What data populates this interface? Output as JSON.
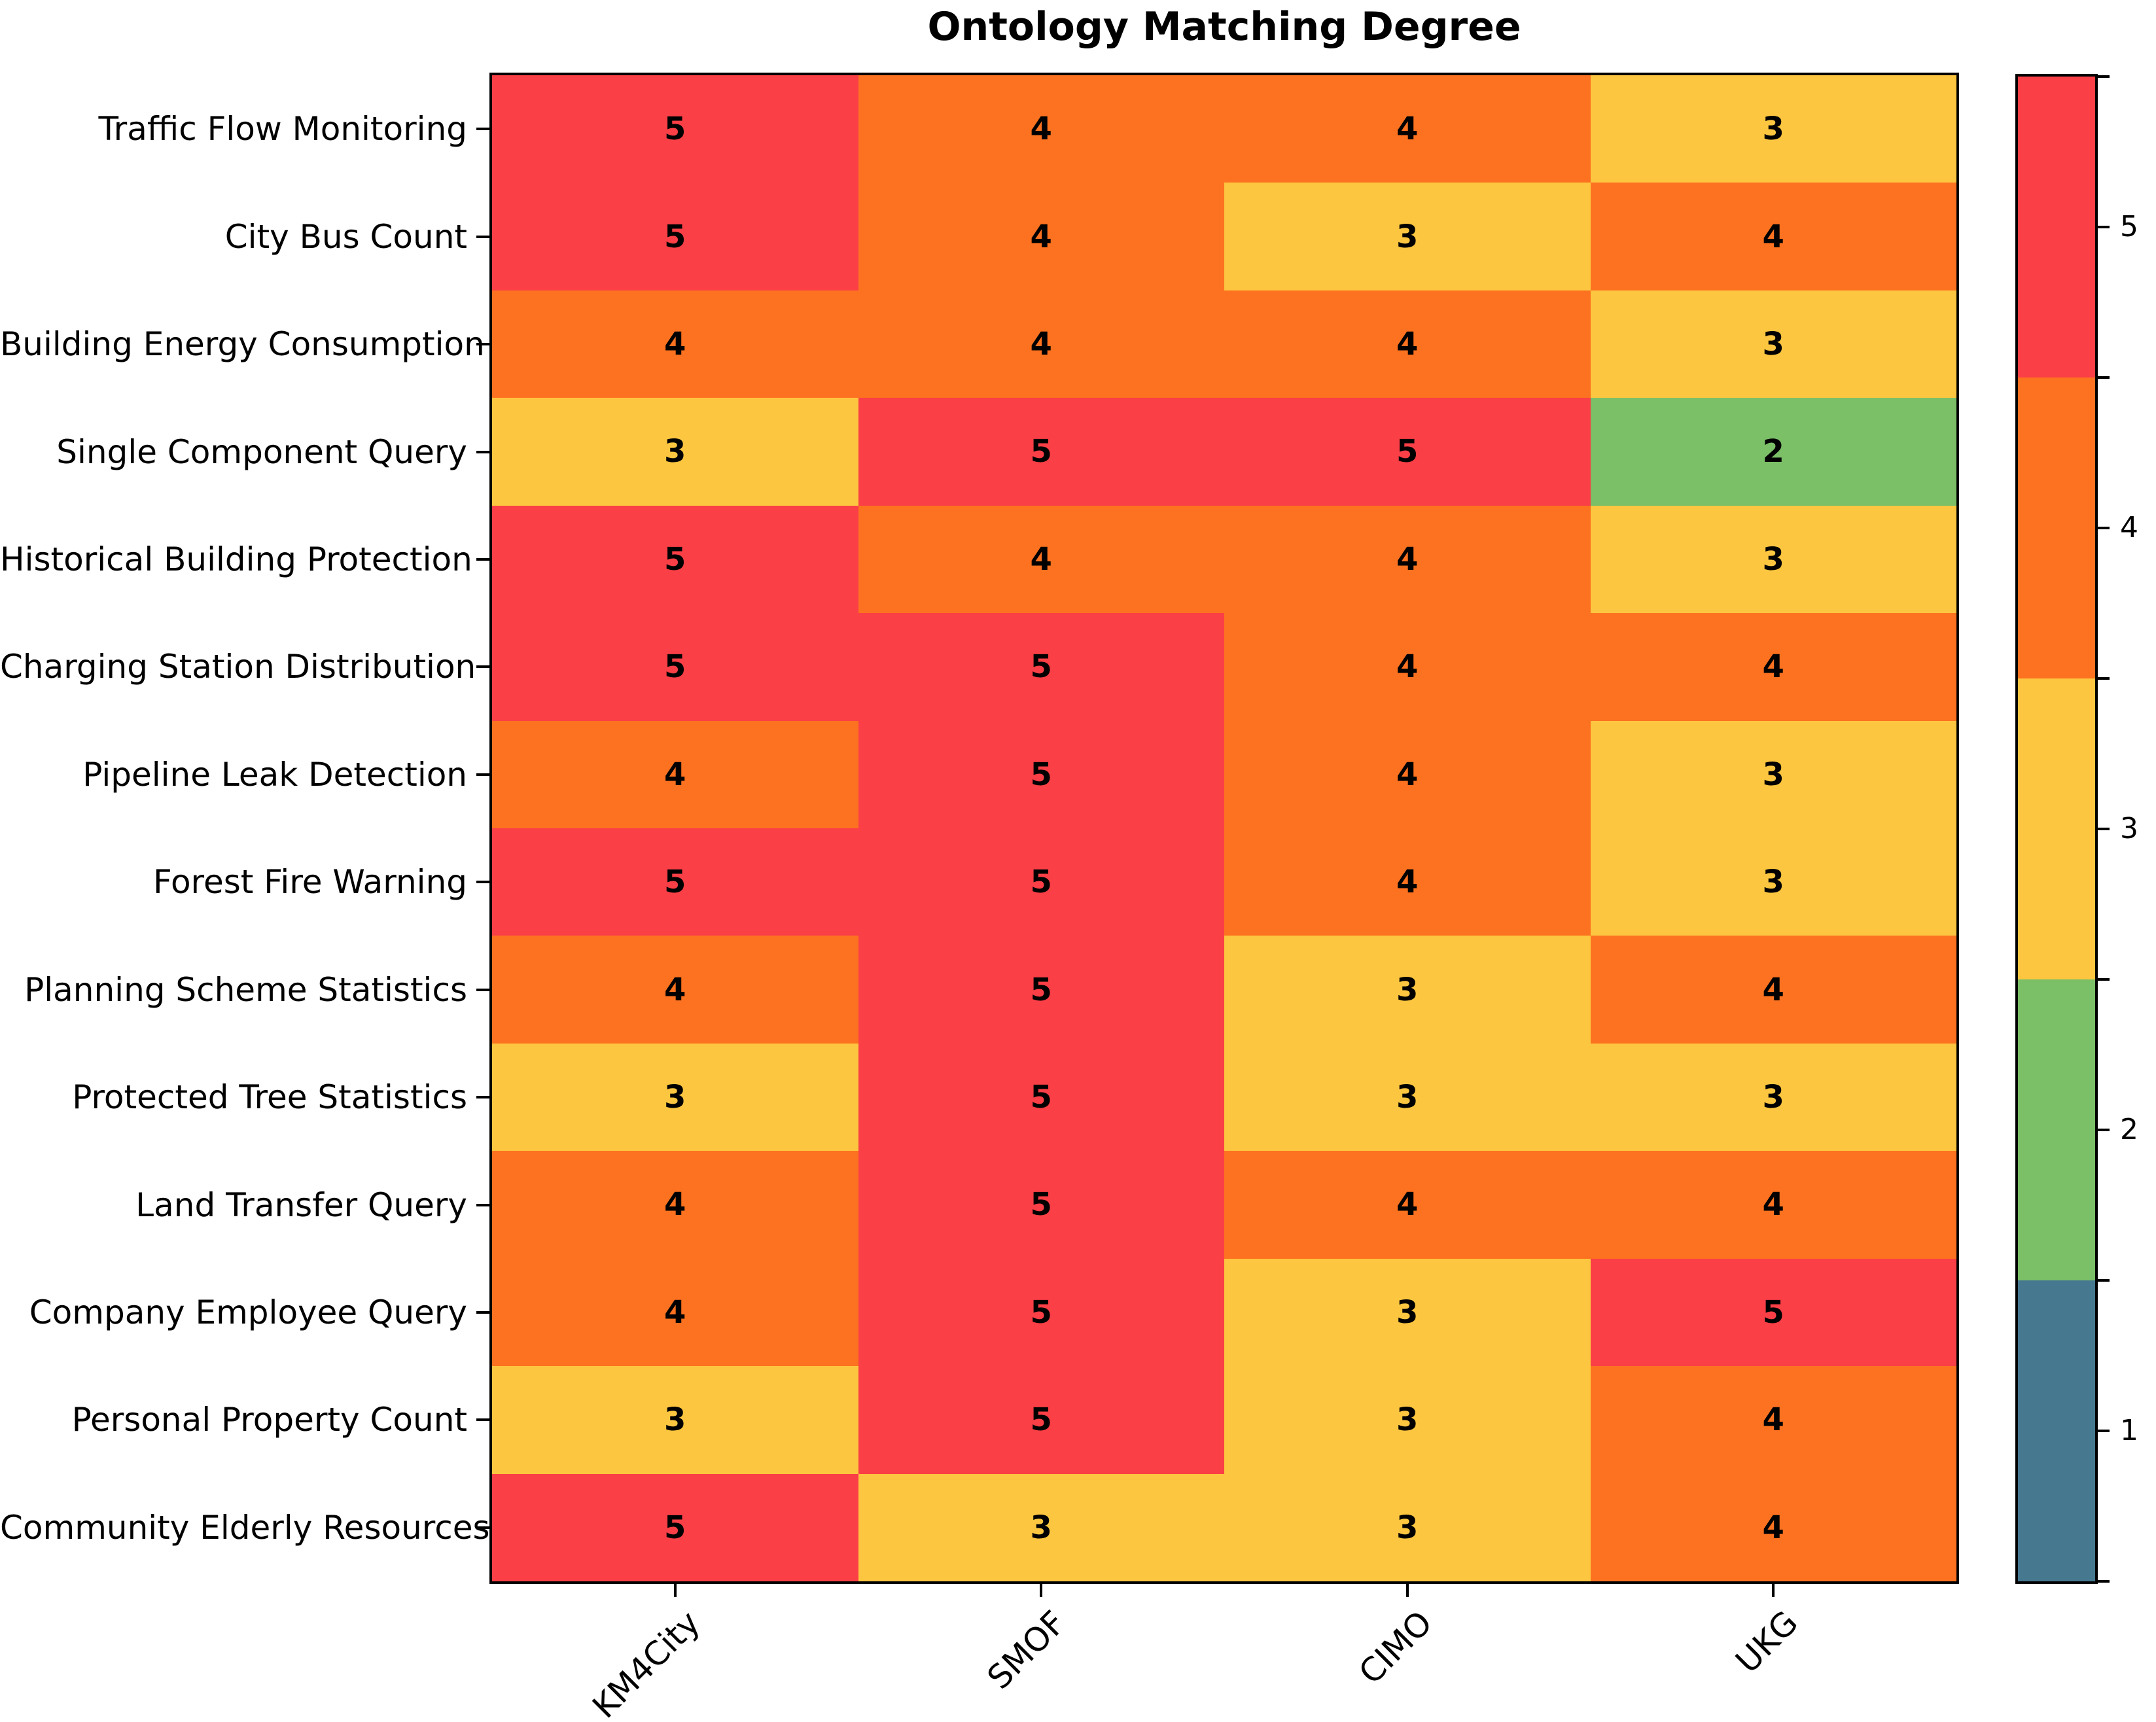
{
  "chart_data": {
    "type": "heatmap",
    "title": "Ontology Matching Degree",
    "rows": [
      "Traffic Flow Monitoring",
      "City Bus Count",
      "Building Energy Consumption",
      "Single Component Query",
      "Historical Building Protection",
      "Charging Station Distribution",
      "Pipeline Leak Detection",
      "Forest Fire Warning",
      "Planning Scheme Statistics",
      "Protected Tree Statistics",
      "Land Transfer Query",
      "Company Employee Query",
      "Personal Property Count",
      "Community Elderly Resources"
    ],
    "columns": [
      "KM4City",
      "SMOF",
      "CIMO",
      "UKG"
    ],
    "values": [
      [
        5,
        4,
        4,
        3
      ],
      [
        5,
        4,
        3,
        4
      ],
      [
        4,
        4,
        4,
        3
      ],
      [
        3,
        5,
        5,
        2
      ],
      [
        5,
        4,
        4,
        3
      ],
      [
        5,
        5,
        4,
        4
      ],
      [
        4,
        5,
        4,
        3
      ],
      [
        5,
        5,
        4,
        3
      ],
      [
        4,
        5,
        3,
        4
      ],
      [
        3,
        5,
        3,
        3
      ],
      [
        4,
        5,
        4,
        4
      ],
      [
        4,
        5,
        3,
        5
      ],
      [
        3,
        5,
        3,
        4
      ],
      [
        5,
        3,
        3,
        4
      ]
    ],
    "value_range": [
      1,
      5
    ],
    "cell_text_color": "#000000",
    "colorbar": {
      "position": "right",
      "levels_top_to_bottom": [
        5,
        4,
        3,
        2,
        1
      ],
      "tick_labels": [
        "5",
        "4",
        "3",
        "2",
        "1"
      ],
      "colors": {
        "1": "#467890",
        "2": "#7BBF66",
        "3": "#FDC640",
        "4": "#FD7220",
        "5": "#FA3F46"
      }
    },
    "grid": false
  }
}
